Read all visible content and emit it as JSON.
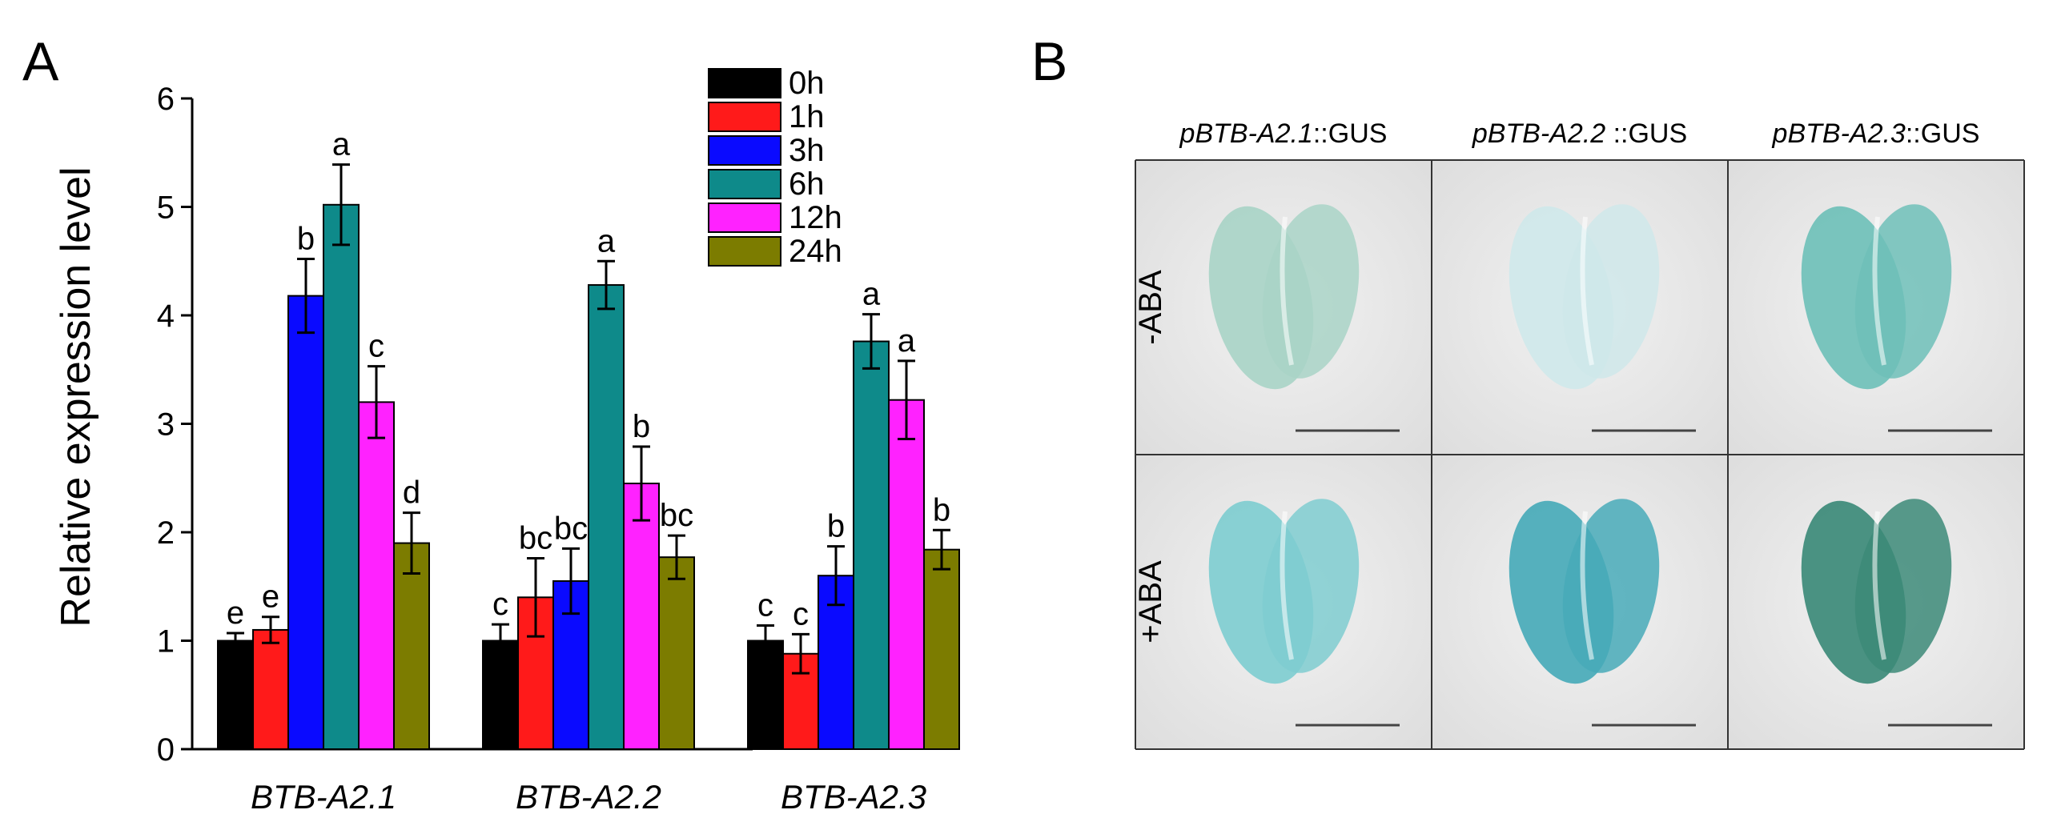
{
  "panel_labels": {
    "a": "A",
    "b": "B"
  },
  "chart_data": {
    "type": "bar",
    "ylabel": "Relative expression level",
    "ylim": [
      0,
      6
    ],
    "yticks": [
      "0",
      "1",
      "2",
      "3",
      "4",
      "5",
      "6"
    ],
    "categories": [
      "BTB-A2.1",
      "BTB-A2.2",
      "BTB-A2.3"
    ],
    "legend_position": "top-right",
    "series": [
      {
        "name": "0h",
        "color": "#000000",
        "values": [
          1.0,
          1.0,
          1.0
        ],
        "errors": [
          0.07,
          0.15,
          0.14
        ],
        "letters": [
          "e",
          "c",
          "c"
        ]
      },
      {
        "name": "1h",
        "color": "#ff1a1a",
        "values": [
          1.1,
          1.4,
          0.88
        ],
        "errors": [
          0.12,
          0.36,
          0.18
        ],
        "letters": [
          "e",
          "bc",
          "c"
        ]
      },
      {
        "name": "3h",
        "color": "#0a0aff",
        "values": [
          4.18,
          1.55,
          1.6
        ],
        "errors": [
          0.34,
          0.3,
          0.27
        ],
        "letters": [
          "b",
          "bc",
          "b"
        ]
      },
      {
        "name": "6h",
        "color": "#0e8a8a",
        "values": [
          5.02,
          4.28,
          3.76
        ],
        "errors": [
          0.37,
          0.22,
          0.25
        ],
        "letters": [
          "a",
          "a",
          "a"
        ]
      },
      {
        "name": "12h",
        "color": "#ff22ff",
        "values": [
          3.2,
          2.45,
          3.22
        ],
        "errors": [
          0.33,
          0.34,
          0.36
        ],
        "letters": [
          "c",
          "b",
          "a"
        ]
      },
      {
        "name": "24h",
        "color": "#7c7c00",
        "values": [
          1.9,
          1.77,
          1.84
        ],
        "errors": [
          0.28,
          0.2,
          0.18
        ],
        "letters": [
          "d",
          "bc",
          "b"
        ]
      }
    ]
  },
  "panel_b": {
    "columns": [
      {
        "prefix": "pBTB-A2.1",
        "suffix": "::GUS"
      },
      {
        "prefix": "pBTB-A2.2",
        "suffix": " ::GUS"
      },
      {
        "prefix": "pBTB-A2.3",
        "suffix": "::GUS"
      }
    ],
    "rows": [
      {
        "label": "-ABA",
        "stain": [
          "#a9d4c7",
          "#cfe8ea",
          "#6fc0b8"
        ]
      },
      {
        "label": "+ABA",
        "stain": [
          "#7fcdd0",
          "#48aab8",
          "#3c8a78"
        ]
      }
    ]
  }
}
